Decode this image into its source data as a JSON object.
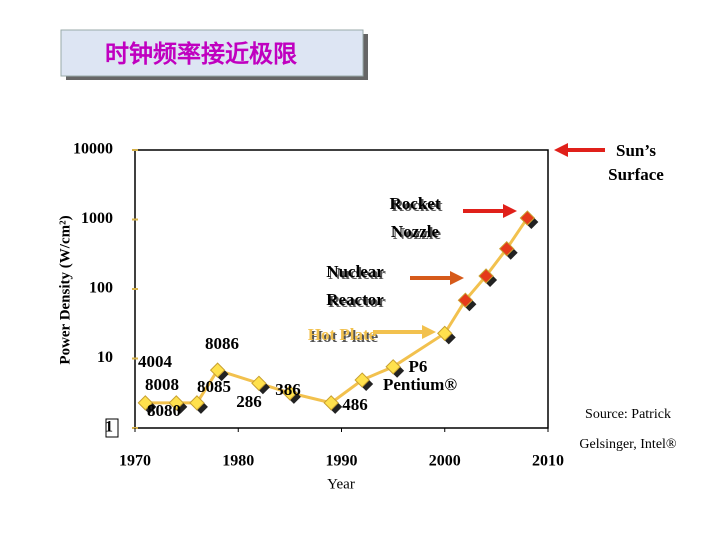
{
  "title": "时钟频率接近极限",
  "chart_data": {
    "type": "line",
    "log_y": true,
    "y_label": "Power Density (W/cm²)",
    "x_label": "Year",
    "xlim": [
      1970,
      2010
    ],
    "xticks": [
      1970,
      1980,
      1990,
      2000,
      2010
    ],
    "ylim": [
      1,
      10000
    ],
    "yticks": [
      1,
      10,
      100,
      1000,
      10000
    ],
    "line_color": "#f2c14e",
    "series": [
      {
        "x": [
          1971,
          1974,
          1976,
          1978,
          1982,
          1985,
          1989,
          1992,
          1995,
          2000,
          2002,
          2004,
          2006,
          2008
        ],
        "values": [
          2.3,
          2.3,
          2.3,
          6.8,
          4.4,
          3.2,
          2.3,
          4.9,
          7.6,
          23,
          69,
          154,
          380,
          1050
        ],
        "colors": [
          "#ffe14d",
          "#ffe14d",
          "#ffe14d",
          "#ffe14d",
          "#ffe14d",
          "#ffe14d",
          "#ffe14d",
          "#ffe14d",
          "#ffe14d",
          "#ffe14d",
          "#e53a1a",
          "#e53a1a",
          "#e53a1a",
          "#e53a1a"
        ]
      }
    ],
    "annotations": [
      {
        "text": "4004"
      },
      {
        "text": "8008"
      },
      {
        "text": "8085"
      },
      {
        "text": "8080"
      },
      {
        "text": "8086"
      },
      {
        "text": "286"
      },
      {
        "text": "386"
      },
      {
        "text": "486"
      },
      {
        "text": "P6"
      },
      {
        "text": "Pentium®"
      },
      {
        "text": "Hot Plate"
      },
      {
        "text": "Nuclear"
      },
      {
        "text": "Reactor"
      },
      {
        "text": "Rocket"
      },
      {
        "text": "Nozzle"
      },
      {
        "text": "Sun’s"
      },
      {
        "text": "Surface"
      }
    ],
    "source": [
      "Source: Patrick",
      "Gelsinger, Intel®"
    ]
  }
}
